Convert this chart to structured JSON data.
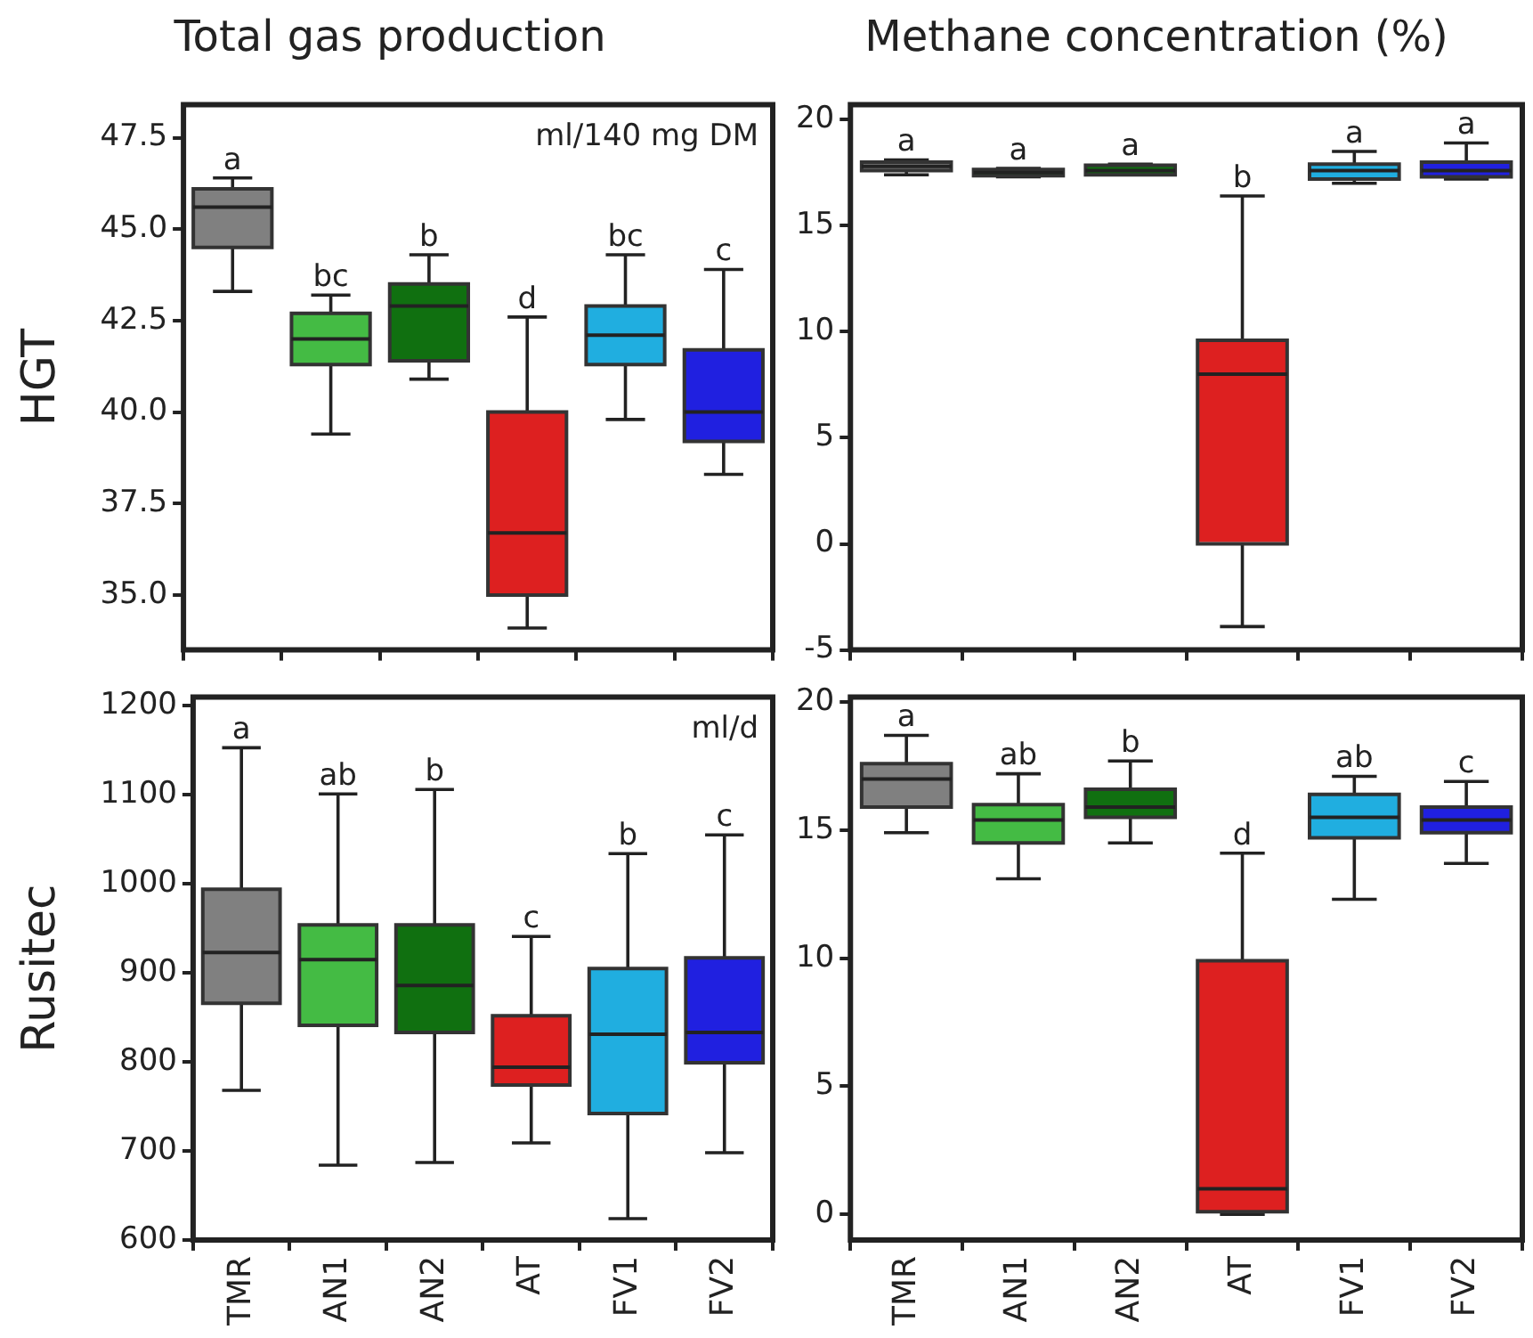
{
  "chart_data": [
    {
      "type": "box",
      "title": "Total gas production",
      "ylabel": "HGT",
      "categories": [
        "TMR",
        "AN1",
        "AN2",
        "AT",
        "FV1",
        "FV2"
      ],
      "colors": [
        "#808080",
        "#44bb44",
        "#107010",
        "#dd2020",
        "#20aee0",
        "#2020e0"
      ],
      "tick_labels": "y",
      "ylim": [
        33.5,
        48.4
      ],
      "yticks": [
        {
          "value": 35,
          "label": "35.0"
        },
        {
          "value": 37.5,
          "label": "37.5"
        },
        {
          "value": 40,
          "label": "40.0"
        },
        {
          "value": 42.5,
          "label": "42.5"
        },
        {
          "value": 45,
          "label": "45.0"
        },
        {
          "value": 47.5,
          "label": "47.5"
        }
      ],
      "boxes": [
        {
          "low": 43.3,
          "q1": 44.5,
          "median": 45.6,
          "q3": 46.1,
          "high": 46.4
        },
        {
          "low": 39.4,
          "q1": 41.3,
          "median": 42.0,
          "q3": 42.7,
          "high": 43.2
        },
        {
          "low": 40.9,
          "q1": 41.4,
          "median": 42.9,
          "q3": 43.5,
          "high": 44.3
        },
        {
          "low": 34.1,
          "q1": 35.0,
          "median": 36.7,
          "q3": 40.0,
          "high": 42.6
        },
        {
          "low": 39.8,
          "q1": 41.3,
          "median": 42.1,
          "q3": 42.9,
          "high": 44.3
        },
        {
          "low": 38.3,
          "q1": 39.2,
          "median": 40.0,
          "q3": 41.7,
          "high": 43.9
        }
      ],
      "annotations": [
        "ml/140 mg DM",
        {
          "text": "a",
          "x": "TMR",
          "y": 46.4
        },
        {
          "text": "bc",
          "x": "AN1",
          "y": 43.2
        },
        {
          "text": "b",
          "x": "AN2",
          "y": 44.3
        },
        {
          "text": "d",
          "x": "AT",
          "y": 42.6
        },
        {
          "text": "bc",
          "x": "FV1",
          "y": 44.3
        },
        {
          "text": "c",
          "x": "FV2",
          "y": 43.9
        }
      ]
    },
    {
      "type": "box",
      "title": "Methane concentration (%)",
      "categories": [
        "TMR",
        "AN1",
        "AN2",
        "AT",
        "FV1",
        "FV2"
      ],
      "colors": [
        "#808080",
        "#44bb44",
        "#107010",
        "#dd2020",
        "#20aee0",
        "#2020e0"
      ],
      "tick_labels": "y",
      "ylim": [
        -5,
        20.7
      ],
      "yticks": [
        -5,
        0,
        5,
        10,
        15,
        20
      ],
      "boxes": [
        {
          "low": 17.4,
          "q1": 17.6,
          "median": 17.8,
          "q3": 18.0,
          "high": 18.1
        },
        {
          "low": 17.3,
          "q1": 17.35,
          "median": 17.5,
          "q3": 17.65,
          "high": 17.7
        },
        {
          "low": 17.4,
          "q1": 17.4,
          "median": 17.6,
          "q3": 17.85,
          "high": 17.9
        },
        {
          "low": -3.9,
          "q1": 0,
          "median": 8.0,
          "q3": 9.6,
          "high": 16.4
        },
        {
          "low": 17.0,
          "q1": 17.2,
          "median": 17.6,
          "q3": 17.9,
          "high": 18.5
        },
        {
          "low": 17.2,
          "q1": 17.3,
          "median": 17.6,
          "q3": 18.0,
          "high": 18.9
        }
      ],
      "annotations": [
        {
          "text": "a",
          "x": "TMR",
          "y": 18.1
        },
        {
          "text": "a",
          "x": "AN1",
          "y": 17.7
        },
        {
          "text": "a",
          "x": "AN2",
          "y": 17.9
        },
        {
          "text": "b",
          "x": "AT",
          "y": 16.4
        },
        {
          "text": "a",
          "x": "FV1",
          "y": 18.5
        },
        {
          "text": "a",
          "x": "FV2",
          "y": 18.9
        }
      ]
    },
    {
      "type": "box",
      "ylabel": "Rusitec",
      "categories": [
        "TMR",
        "AN1",
        "AN2",
        "AT",
        "FV1",
        "FV2"
      ],
      "colors": [
        "#808080",
        "#44bb44",
        "#107010",
        "#dd2020",
        "#20aee0",
        "#2020e0"
      ],
      "ylim": [
        600,
        1210
      ],
      "yticks": [
        600,
        700,
        800,
        900,
        1000,
        1100,
        1200
      ],
      "boxes": [
        {
          "low": 768,
          "q1": 866,
          "median": 923,
          "q3": 994,
          "high": 1153
        },
        {
          "low": 684,
          "q1": 841,
          "median": 915,
          "q3": 954,
          "high": 1101
        },
        {
          "low": 687,
          "q1": 833,
          "median": 886,
          "q3": 954,
          "high": 1106
        },
        {
          "low": 709,
          "q1": 774,
          "median": 794,
          "q3": 852,
          "high": 941
        },
        {
          "low": 624,
          "q1": 742,
          "median": 831,
          "q3": 905,
          "high": 1034
        },
        {
          "low": 698,
          "q1": 799,
          "median": 833,
          "q3": 917,
          "high": 1055
        }
      ],
      "annotations": [
        "ml/d",
        {
          "text": "a",
          "x": "TMR",
          "y": 1153
        },
        {
          "text": "ab",
          "x": "AN1",
          "y": 1101
        },
        {
          "text": "b",
          "x": "AN2",
          "y": 1106
        },
        {
          "text": "c",
          "x": "AT",
          "y": 941
        },
        {
          "text": "b",
          "x": "FV1",
          "y": 1034
        },
        {
          "text": "c",
          "x": "FV2",
          "y": 1055
        }
      ]
    },
    {
      "type": "box",
      "categories": [
        "TMR",
        "AN1",
        "AN2",
        "AT",
        "FV1",
        "FV2"
      ],
      "colors": [
        "#808080",
        "#44bb44",
        "#107010",
        "#dd2020",
        "#20aee0",
        "#2020e0"
      ],
      "ylim": [
        -1,
        20.2
      ],
      "yticks": [
        0,
        5,
        10,
        15,
        20
      ],
      "boxes": [
        {
          "low": 14.9,
          "q1": 15.9,
          "median": 17.0,
          "q3": 17.6,
          "high": 18.7
        },
        {
          "low": 13.1,
          "q1": 14.5,
          "median": 15.4,
          "q3": 16.0,
          "high": 17.2
        },
        {
          "low": 14.5,
          "q1": 15.5,
          "median": 15.9,
          "q3": 16.6,
          "high": 17.7
        },
        {
          "low": 0,
          "q1": 0.1,
          "median": 1.0,
          "q3": 9.9,
          "high": 14.1
        },
        {
          "low": 12.3,
          "q1": 14.7,
          "median": 15.5,
          "q3": 16.4,
          "high": 17.1
        },
        {
          "low": 13.7,
          "q1": 14.9,
          "median": 15.4,
          "q3": 15.9,
          "high": 16.9
        }
      ],
      "annotations": [
        {
          "text": "a",
          "x": "TMR",
          "y": 18.7
        },
        {
          "text": "ab",
          "x": "AN1",
          "y": 17.2
        },
        {
          "text": "b",
          "x": "AN2",
          "y": 17.7
        },
        {
          "text": "d",
          "x": "AT",
          "y": 14.1
        },
        {
          "text": "ab",
          "x": "FV1",
          "y": 17.1
        },
        {
          "text": "c",
          "x": "FV2",
          "y": 16.9
        }
      ]
    }
  ]
}
